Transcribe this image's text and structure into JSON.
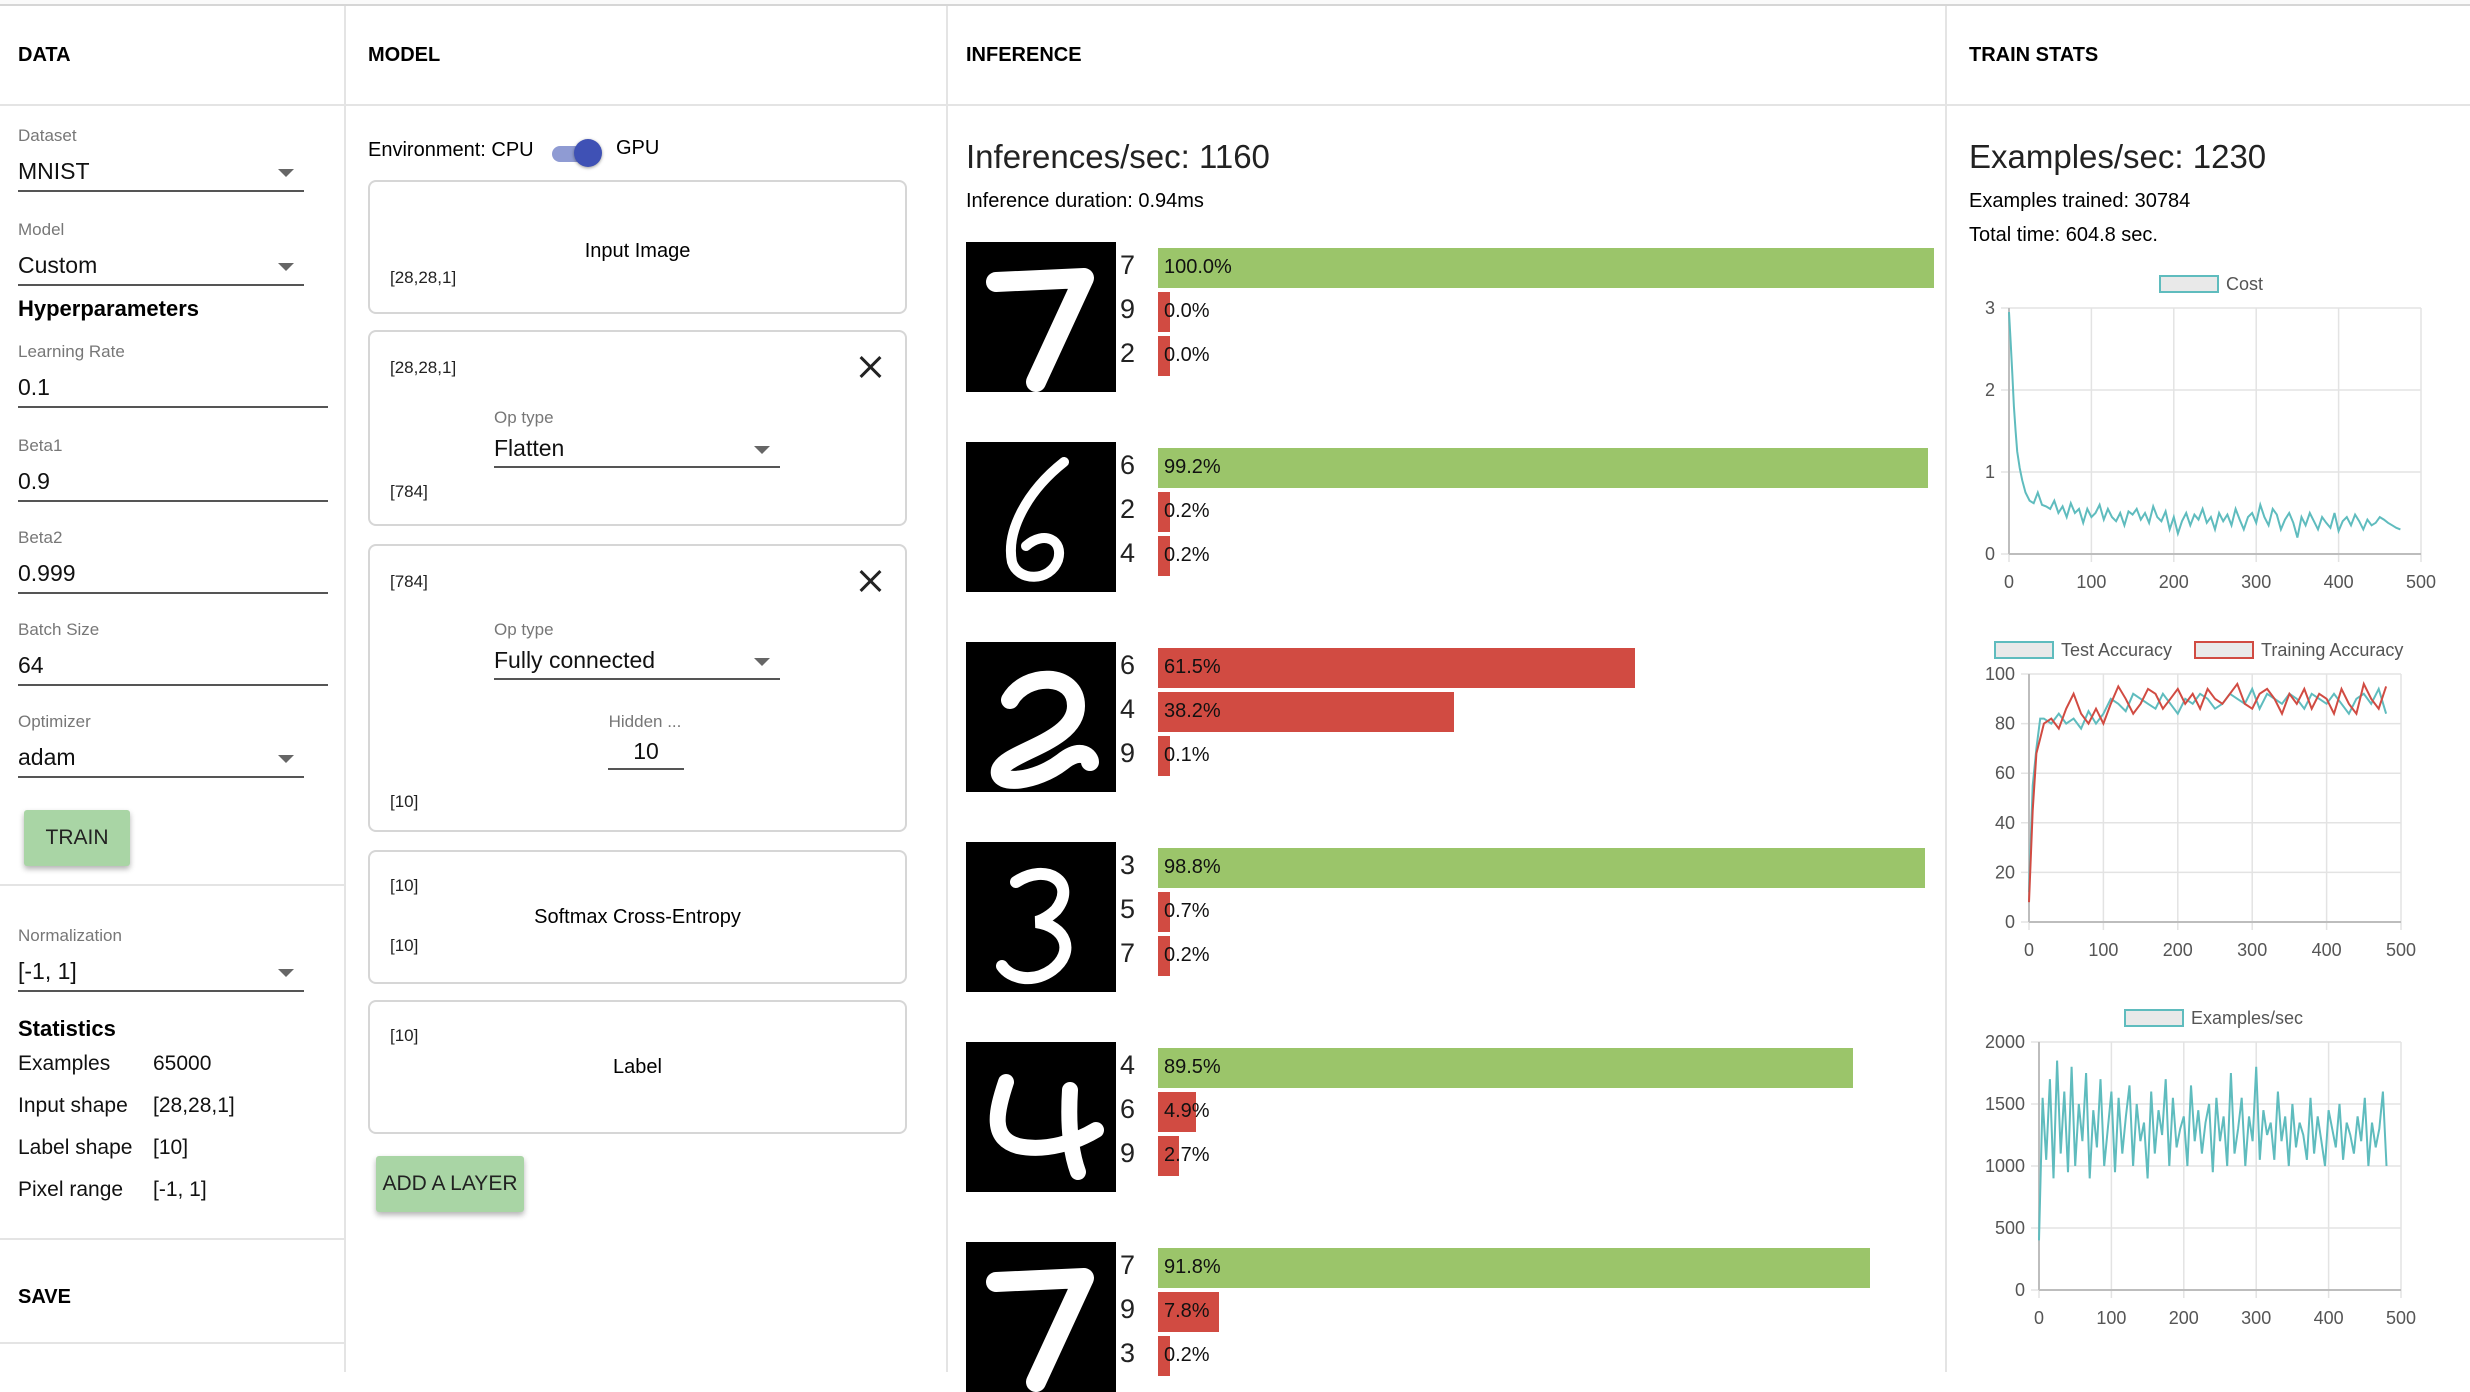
{
  "columns": {
    "data": "DATA",
    "model": "MODEL",
    "inference": "INFERENCE",
    "train_stats": "TRAIN STATS"
  },
  "data_panel": {
    "dataset_label": "Dataset",
    "dataset_value": "MNIST",
    "model_label": "Model",
    "model_value": "Custom",
    "hyper_title": "Hyperparameters",
    "lr_label": "Learning Rate",
    "lr_value": "0.1",
    "beta1_label": "Beta1",
    "beta1_value": "0.9",
    "beta2_label": "Beta2",
    "beta2_value": "0.999",
    "batch_label": "Batch Size",
    "batch_value": "64",
    "opt_label": "Optimizer",
    "opt_value": "adam",
    "train_button": "TRAIN",
    "norm_label": "Normalization",
    "norm_value": "[-1, 1]",
    "stats_title": "Statistics",
    "stats": [
      {
        "k": "Examples",
        "v": "65000"
      },
      {
        "k": "Input shape",
        "v": "[28,28,1]"
      },
      {
        "k": "Label shape",
        "v": "[10]"
      },
      {
        "k": "Pixel range",
        "v": "[-1, 1]"
      }
    ],
    "save_button": "SAVE"
  },
  "model_panel": {
    "env_label": "Environment: CPU",
    "env_gpu": "GPU",
    "env_toggle_on": true,
    "input_card": {
      "title": "Input Image",
      "shape": "[28,28,1]"
    },
    "flatten_card": {
      "in_shape": "[28,28,1]",
      "op_label": "Op type",
      "op_value": "Flatten",
      "out_shape": "[784]"
    },
    "fc_card": {
      "in_shape": "[784]",
      "op_label": "Op type",
      "op_value": "Fully connected",
      "hidden_label": "Hidden ...",
      "hidden_value": "10",
      "out_shape": "[10]"
    },
    "softmax_card": {
      "in_shape": "[10]",
      "title": "Softmax Cross-Entropy",
      "out_shape": "[10]"
    },
    "label_card": {
      "shape": "[10]",
      "title": "Label"
    },
    "add_layer_button": "ADD A LAYER"
  },
  "inference": {
    "ips": "Inferences/sec: 1160",
    "duration": "Inference duration: 0.94ms",
    "rows": [
      {
        "digit": "7",
        "preds": [
          {
            "label": "7",
            "value": 100.0,
            "text": "100.0%",
            "correct": true
          },
          {
            "label": "9",
            "value": 0.0,
            "text": "0.0%",
            "correct": false
          },
          {
            "label": "2",
            "value": 0.0,
            "text": "0.0%",
            "correct": false
          }
        ]
      },
      {
        "digit": "6",
        "preds": [
          {
            "label": "6",
            "value": 99.2,
            "text": "99.2%",
            "correct": true
          },
          {
            "label": "2",
            "value": 0.2,
            "text": "0.2%",
            "correct": false
          },
          {
            "label": "4",
            "value": 0.2,
            "text": "0.2%",
            "correct": false
          }
        ]
      },
      {
        "digit": "2",
        "preds": [
          {
            "label": "6",
            "value": 61.5,
            "text": "61.5%",
            "correct": false
          },
          {
            "label": "4",
            "value": 38.2,
            "text": "38.2%",
            "correct": false
          },
          {
            "label": "9",
            "value": 0.1,
            "text": "0.1%",
            "correct": false
          }
        ]
      },
      {
        "digit": "3",
        "preds": [
          {
            "label": "3",
            "value": 98.8,
            "text": "98.8%",
            "correct": true
          },
          {
            "label": "5",
            "value": 0.7,
            "text": "0.7%",
            "correct": false
          },
          {
            "label": "7",
            "value": 0.2,
            "text": "0.2%",
            "correct": false
          }
        ]
      },
      {
        "digit": "4",
        "preds": [
          {
            "label": "4",
            "value": 89.5,
            "text": "89.5%",
            "correct": true
          },
          {
            "label": "6",
            "value": 4.9,
            "text": "4.9%",
            "correct": false
          },
          {
            "label": "9",
            "value": 2.7,
            "text": "2.7%",
            "correct": false
          }
        ]
      },
      {
        "digit": "7",
        "preds": [
          {
            "label": "7",
            "value": 91.8,
            "text": "91.8%",
            "correct": true
          },
          {
            "label": "9",
            "value": 7.8,
            "text": "7.8%",
            "correct": false
          },
          {
            "label": "3",
            "value": 0.2,
            "text": "0.2%",
            "correct": false
          }
        ]
      }
    ]
  },
  "train_stats": {
    "eps": "Examples/sec: 1230",
    "trained": "Examples trained: 30784",
    "total_time": "Total time: 604.8 sec."
  },
  "colors": {
    "green": "#9bc56a",
    "red": "#d14b42",
    "teal": "#5fbcbe",
    "toggle": "#3f51b5",
    "button": "#a9d5a5"
  },
  "chart_data": [
    {
      "type": "line",
      "legend": [
        "Cost"
      ],
      "xlim": [
        0,
        500
      ],
      "ylim": [
        0,
        3
      ],
      "xticks": [
        "0",
        "100",
        "200",
        "300",
        "400",
        "500"
      ],
      "yticks": [
        "0",
        "1",
        "2",
        "3"
      ],
      "series": [
        {
          "name": "Cost",
          "color": "#5fbcbe",
          "x": [
            0,
            2,
            4,
            6,
            8,
            10,
            13,
            16,
            20,
            25,
            30,
            35,
            40,
            45,
            50,
            55,
            60,
            65,
            70,
            75,
            80,
            85,
            90,
            95,
            100,
            105,
            110,
            115,
            120,
            125,
            130,
            135,
            140,
            145,
            150,
            155,
            160,
            165,
            170,
            175,
            180,
            185,
            190,
            195,
            200,
            205,
            210,
            215,
            220,
            225,
            230,
            235,
            240,
            245,
            250,
            255,
            260,
            265,
            270,
            275,
            280,
            285,
            290,
            295,
            300,
            305,
            310,
            315,
            320,
            325,
            330,
            335,
            340,
            345,
            350,
            355,
            360,
            365,
            370,
            375,
            380,
            385,
            390,
            395,
            400,
            405,
            410,
            415,
            420,
            425,
            430,
            435,
            440,
            445,
            450,
            455,
            460,
            465,
            470,
            475
          ],
          "y": [
            2.95,
            2.6,
            2.2,
            1.8,
            1.5,
            1.25,
            1.05,
            0.9,
            0.75,
            0.65,
            0.62,
            0.75,
            0.6,
            0.58,
            0.55,
            0.65,
            0.5,
            0.58,
            0.45,
            0.62,
            0.5,
            0.55,
            0.38,
            0.55,
            0.45,
            0.5,
            0.6,
            0.42,
            0.55,
            0.45,
            0.4,
            0.5,
            0.35,
            0.52,
            0.48,
            0.55,
            0.42,
            0.5,
            0.38,
            0.58,
            0.45,
            0.4,
            0.52,
            0.3,
            0.45,
            0.25,
            0.4,
            0.5,
            0.35,
            0.48,
            0.42,
            0.55,
            0.38,
            0.45,
            0.3,
            0.5,
            0.4,
            0.48,
            0.35,
            0.55,
            0.42,
            0.3,
            0.45,
            0.5,
            0.38,
            0.6,
            0.45,
            0.35,
            0.55,
            0.48,
            0.3,
            0.42,
            0.5,
            0.38,
            0.2,
            0.45,
            0.35,
            0.5,
            0.4,
            0.3,
            0.45,
            0.38,
            0.32,
            0.5,
            0.28,
            0.4,
            0.45,
            0.35,
            0.48,
            0.4,
            0.3,
            0.42,
            0.35,
            0.38,
            0.45,
            0.42,
            0.38,
            0.35,
            0.32,
            0.3
          ]
        }
      ]
    },
    {
      "type": "line",
      "legend": [
        "Test Accuracy",
        "Training Accuracy"
      ],
      "xlim": [
        0,
        500
      ],
      "ylim": [
        0,
        100
      ],
      "xticks": [
        "0",
        "100",
        "200",
        "300",
        "400",
        "500"
      ],
      "yticks": [
        "0",
        "20",
        "40",
        "60",
        "80",
        "100"
      ],
      "series": [
        {
          "name": "Test Accuracy",
          "color": "#5fbcbe",
          "x": [
            0,
            5,
            10,
            15,
            20,
            30,
            40,
            50,
            60,
            70,
            80,
            90,
            100,
            110,
            120,
            130,
            140,
            150,
            160,
            170,
            180,
            190,
            200,
            210,
            220,
            230,
            240,
            250,
            260,
            270,
            280,
            290,
            300,
            310,
            320,
            330,
            340,
            350,
            360,
            370,
            380,
            390,
            400,
            410,
            420,
            430,
            440,
            450,
            460,
            470,
            480
          ],
          "y": [
            12,
            55,
            70,
            82,
            82,
            80,
            84,
            80,
            82,
            78,
            85,
            80,
            84,
            90,
            88,
            85,
            92,
            90,
            88,
            86,
            92,
            88,
            84,
            90,
            88,
            92,
            90,
            86,
            88,
            92,
            90,
            88,
            94,
            86,
            92,
            90,
            88,
            92,
            90,
            86,
            92,
            90,
            88,
            92,
            88,
            84,
            90,
            92,
            88,
            94,
            84
          ]
        },
        {
          "name": "Training Accuracy",
          "color": "#d14b42",
          "x": [
            0,
            5,
            10,
            15,
            20,
            30,
            40,
            50,
            60,
            70,
            80,
            90,
            100,
            110,
            120,
            130,
            140,
            150,
            160,
            170,
            180,
            190,
            200,
            210,
            220,
            230,
            240,
            250,
            260,
            270,
            280,
            290,
            300,
            310,
            320,
            330,
            340,
            350,
            360,
            370,
            380,
            390,
            400,
            410,
            420,
            430,
            440,
            450,
            460,
            470,
            480
          ],
          "y": [
            8,
            45,
            68,
            74,
            80,
            82,
            78,
            86,
            92,
            84,
            80,
            86,
            80,
            88,
            95,
            90,
            84,
            88,
            94,
            92,
            86,
            90,
            94,
            88,
            92,
            86,
            94,
            90,
            88,
            92,
            96,
            88,
            86,
            92,
            94,
            90,
            84,
            92,
            88,
            94,
            86,
            92,
            90,
            84,
            94,
            88,
            84,
            96,
            90,
            86,
            95
          ]
        }
      ]
    },
    {
      "type": "line",
      "legend": [
        "Examples/sec"
      ],
      "xlim": [
        0,
        500
      ],
      "ylim": [
        0,
        2000
      ],
      "xticks": [
        "0",
        "100",
        "200",
        "300",
        "400",
        "500"
      ],
      "yticks": [
        "0",
        "500",
        "1000",
        "1500",
        "2000"
      ],
      "series": [
        {
          "name": "Examples/sec",
          "color": "#5fbcbe",
          "x": [
            0,
            5,
            10,
            15,
            20,
            25,
            30,
            35,
            40,
            45,
            50,
            55,
            60,
            65,
            70,
            75,
            80,
            85,
            90,
            95,
            100,
            105,
            110,
            115,
            120,
            125,
            130,
            135,
            140,
            145,
            150,
            155,
            160,
            165,
            170,
            175,
            180,
            185,
            190,
            195,
            200,
            205,
            210,
            215,
            220,
            225,
            230,
            235,
            240,
            245,
            250,
            255,
            260,
            265,
            270,
            275,
            280,
            285,
            290,
            295,
            300,
            305,
            310,
            315,
            320,
            325,
            330,
            335,
            340,
            345,
            350,
            355,
            360,
            365,
            370,
            375,
            380,
            385,
            390,
            395,
            400,
            405,
            410,
            415,
            420,
            425,
            430,
            435,
            440,
            445,
            450,
            455,
            460,
            465,
            470,
            475,
            480
          ],
          "y": [
            400,
            1550,
            1050,
            1700,
            900,
            1850,
            1100,
            1600,
            950,
            1800,
            1000,
            1500,
            1200,
            1750,
            900,
            1450,
            1150,
            1700,
            1000,
            1300,
            1600,
            950,
            1550,
            1100,
            1400,
            1650,
            1000,
            1500,
            1200,
            1350,
            900,
            1600,
            1100,
            1450,
            1250,
            1700,
            1000,
            1550,
            1150,
            1300,
            1400,
            1000,
            1650,
            1200,
            1450,
            1100,
            1350,
            1500,
            950,
            1550,
            1200,
            1400,
            1000,
            1750,
            1100,
            1300,
            1550,
            1000,
            1400,
            1200,
            1800,
            1050,
            1450,
            1250,
            1350,
            1050,
            1600,
            1200,
            1400,
            1000,
            1500,
            1150,
            1350,
            1250,
            1050,
            1550,
            1100,
            1400,
            1200,
            1000,
            1450,
            1300,
            1150,
            1500,
            1050,
            1350,
            1250,
            1100,
            1400,
            1200,
            1550,
            1000,
            1350,
            1150,
            1300,
            1600,
            1000
          ]
        }
      ]
    }
  ]
}
